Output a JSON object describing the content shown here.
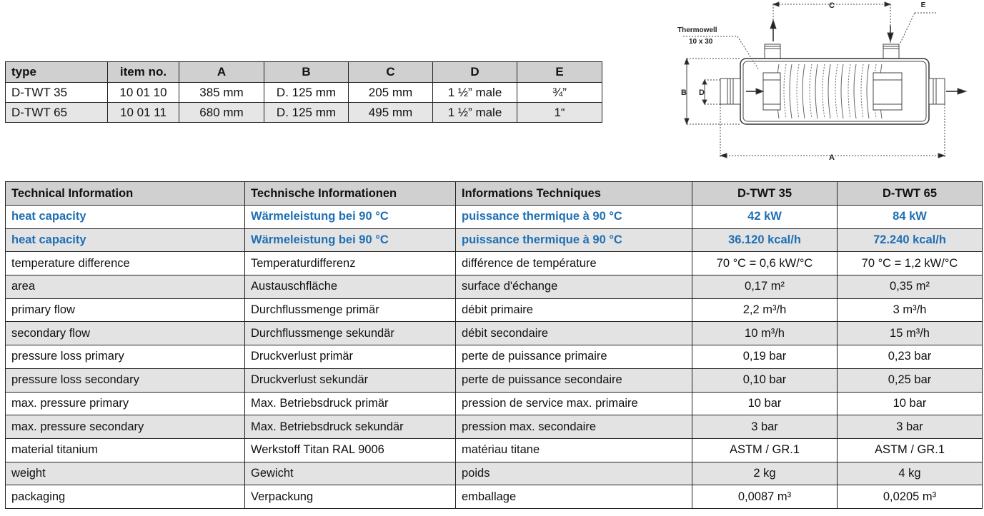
{
  "dimensions_table": {
    "headers": [
      "type",
      "item no.",
      "A",
      "B",
      "C",
      "D",
      "E"
    ],
    "rows": [
      [
        "D-TWT 35",
        "10 01 10",
        "385 mm",
        "D. 125 mm",
        "205 mm",
        "1 ½” male",
        "¾”"
      ],
      [
        "D-TWT 65",
        "10 01 11",
        "680 mm",
        "D. 125 mm",
        "495 mm",
        "1 ½” male",
        "1“"
      ]
    ]
  },
  "diagram": {
    "labels": {
      "thermowell": "Thermowell",
      "thermowell_size": "10 x 30",
      "a": "A",
      "b": "B",
      "c": "C",
      "d": "D",
      "e": "E"
    }
  },
  "tech_table": {
    "headers": [
      "Technical Information",
      "Technische Informationen",
      "Informations Techniques",
      "D-TWT 35",
      "D-TWT 65"
    ],
    "highlight_color": "#1f6fb4",
    "rows": [
      {
        "highlight": true,
        "cells": [
          "heat capacity",
          "Wärmeleistung bei 90 °C",
          "puissance thermique à 90 °C",
          "42 kW",
          "84 kW"
        ]
      },
      {
        "highlight": true,
        "cells": [
          "heat capacity",
          "Wärmeleistung bei 90 °C",
          "puissance thermique à 90 °C",
          "36.120 kcal/h",
          "72.240 kcal/h"
        ]
      },
      {
        "cells": [
          "temperature difference",
          "Temperaturdifferenz",
          "différence de température",
          "70 °C = 0,6 kW/°C",
          "70 °C = 1,2 kW/°C"
        ]
      },
      {
        "cells": [
          "area",
          "Austauschfläche",
          "surface d'échange",
          "0,17 m²",
          "0,35 m²"
        ]
      },
      {
        "cells": [
          "primary flow",
          "Durchflussmenge primär",
          "débit primaire",
          "2,2 m³/h",
          "3 m³/h"
        ]
      },
      {
        "cells": [
          "secondary flow",
          "Durchflussmenge sekundär",
          "débit secondaire",
          "10 m³/h",
          "15 m³/h"
        ]
      },
      {
        "cells": [
          "pressure loss primary",
          "Druckverlust primär",
          "perte de puissance primaire",
          "0,19 bar",
          "0,23 bar"
        ]
      },
      {
        "cells": [
          "pressure loss secondary",
          "Druckverlust sekundär",
          "perte de puissance secondaire",
          "0,10 bar",
          "0,25 bar"
        ]
      },
      {
        "cells": [
          "max. pressure primary",
          "Max. Betriebsdruck primär",
          "pression de service max. primaire",
          "10 bar",
          "10 bar"
        ]
      },
      {
        "cells": [
          "max. pressure secondary",
          "Max. Betriebsdruck sekundär",
          "pression max. secondaire",
          "3 bar",
          "3 bar"
        ]
      },
      {
        "cells": [
          "material titanium",
          "Werkstoff Titan RAL 9006",
          "matériau  titane",
          "ASTM / GR.1",
          "ASTM / GR.1"
        ]
      },
      {
        "cells": [
          "weight",
          "Gewicht",
          "poids",
          "2 kg",
          "4 kg"
        ]
      },
      {
        "cells": [
          "packaging",
          "Verpackung",
          "emballage",
          "0,0087 m³",
          "0,0205 m³"
        ]
      }
    ]
  }
}
